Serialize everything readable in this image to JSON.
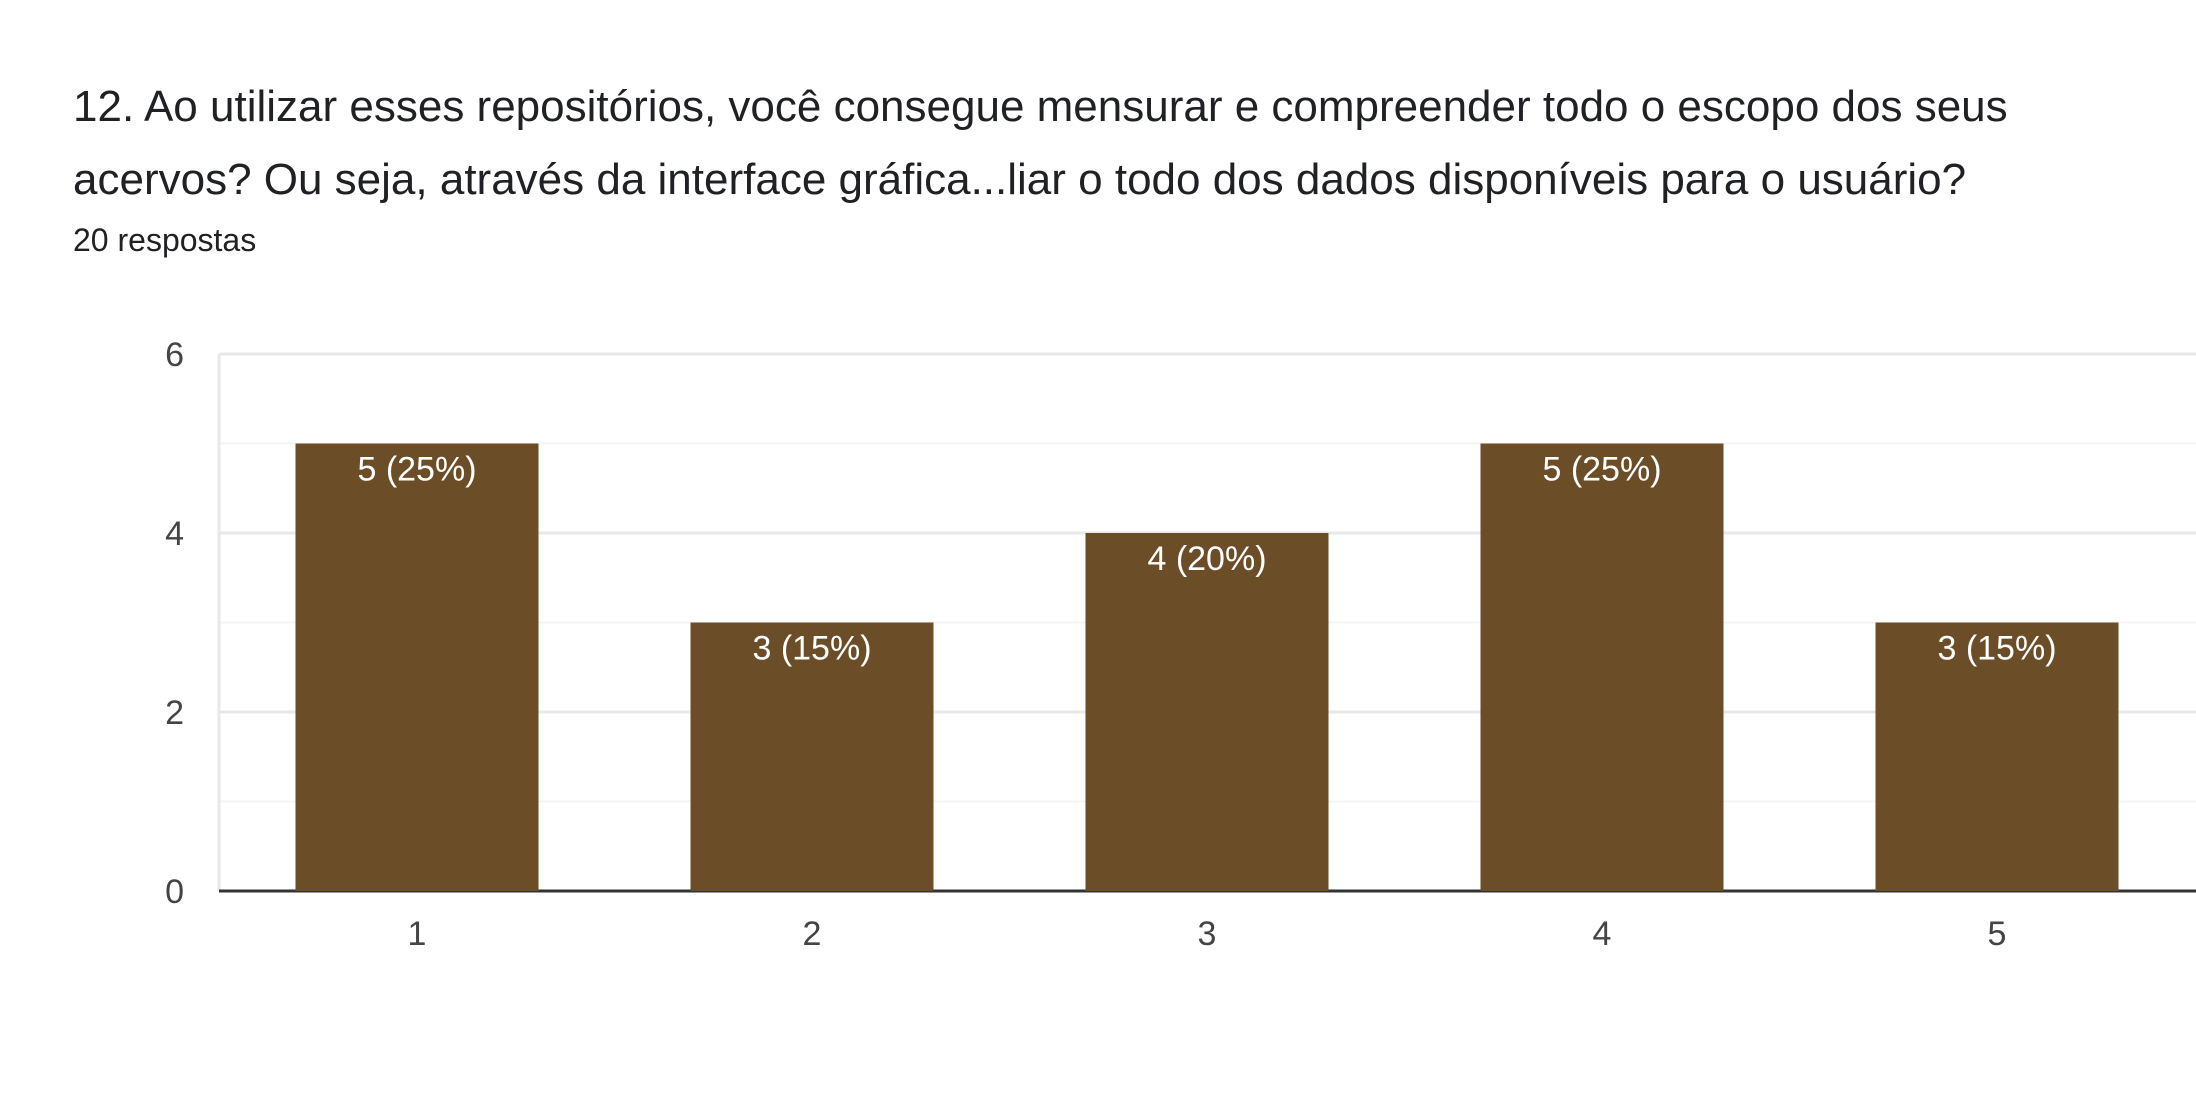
{
  "question": {
    "title": "12. Ao utilizar esses repositórios, você consegue mensurar e compreender todo o escopo dos seus acervos? Ou seja, através da interface gráfica...liar  o todo dos dados disponíveis para o usuário?",
    "responses": "20 respostas"
  },
  "colors": {
    "bar": "#6b4e27",
    "gridline": "#e8e8e8",
    "minor_gridline": "#f4f4f4",
    "axis": "#333333"
  },
  "chart_data": {
    "type": "bar",
    "categories": [
      "1",
      "2",
      "3",
      "4",
      "5"
    ],
    "values": [
      5,
      3,
      4,
      5,
      3
    ],
    "data_labels": [
      "5 (25%)",
      "3 (15%)",
      "4 (20%)",
      "5 (25%)",
      "3 (15%)"
    ],
    "y_ticks": [
      "0",
      "2",
      "4",
      "6"
    ],
    "ylim": [
      0,
      6
    ],
    "grid": true,
    "legend": "none"
  }
}
